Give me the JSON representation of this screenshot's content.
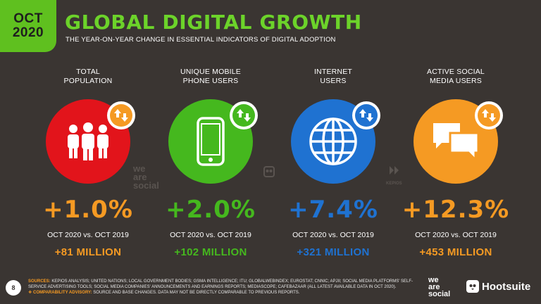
{
  "header": {
    "month": "OCT",
    "year": "2020",
    "title": "GLOBAL DIGITAL GROWTH",
    "subtitle": "THE YEAR-ON-YEAR CHANGE IN ESSENTIAL INDICATORS OF DIGITAL ADOPTION"
  },
  "colors": {
    "accent": "#5fc01f",
    "title": "#6cd32a",
    "red": "#e2141b",
    "green": "#45b81e",
    "blue": "#1f72d1",
    "orange": "#f59a23",
    "background": "#3a3532"
  },
  "indicators": [
    {
      "label_line1": "TOTAL",
      "label_line2": "POPULATION",
      "icon": "people-icon",
      "color": "#e2141b",
      "change": "+1.0%",
      "comparison": "OCT 2020 vs. OCT 2019",
      "absolute": "+81 MILLION"
    },
    {
      "label_line1": "UNIQUE MOBILE",
      "label_line2": "PHONE USERS",
      "icon": "mobile-phone-icon",
      "color": "#45b81e",
      "change": "+2.0%",
      "comparison": "OCT 2020 vs. OCT 2019",
      "absolute": "+102 MILLION"
    },
    {
      "label_line1": "INTERNET",
      "label_line2": "USERS",
      "icon": "globe-icon",
      "color": "#1f72d1",
      "change": "+7.4%",
      "comparison": "OCT 2020 vs. OCT 2019",
      "absolute": "+321 MILLION"
    },
    {
      "label_line1": "ACTIVE SOCIAL",
      "label_line2": "MEDIA USERS",
      "icon": "chat-bubbles-icon",
      "color": "#f59a23",
      "change": "+12.3%",
      "comparison": "OCT 2020 vs. OCT 2019",
      "absolute": "+453 MILLION"
    }
  ],
  "watermarks": {
    "we_are_social": "we are social",
    "kepios": "KEPIOS"
  },
  "footer": {
    "page_number": "8",
    "sources_label": "SOURCES:",
    "sources_text": "KEPIOS ANALYSIS; UNITED NATIONS; LOCAL GOVERNMENT BODIES; GSMA INTELLIGENCE; ITU; GLOBALWEBINDEX; EUROSTAT; CNNIC; APJII; SOCIAL MEDIA PLATFORMS' SELF-SERVICE ADVERTISING TOOLS; SOCIAL MEDIA COMPANIES' ANNOUNCEMENTS AND EARNINGS REPORTS; MEDIASCOPE; CAFEBAZAAR (ALL LATEST AVAILABLE DATA IN OCT 2020).",
    "advisory_label": "❖ COMPARABILITY ADVISORY:",
    "advisory_text": "SOURCE AND BASE CHANGES. DATA MAY NOT BE DIRECTLY COMPARABLE TO PREVIOUS REPORTS.",
    "brand_we": "we",
    "brand_are": "are",
    "brand_social": "social",
    "brand_hootsuite": "Hootsuite"
  }
}
